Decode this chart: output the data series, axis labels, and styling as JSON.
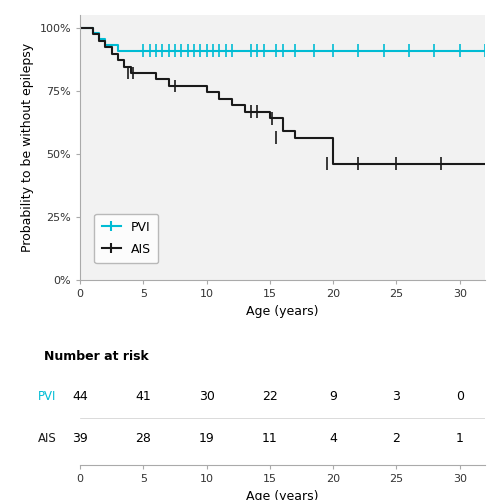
{
  "pvi_steps": {
    "times": [
      0,
      0.5,
      1.0,
      1.5,
      2.0,
      3.0,
      4.0,
      5.0,
      6.0,
      7.0,
      8.0,
      9.0,
      10.0,
      11.0,
      12.0,
      13.0,
      14.0,
      15.0,
      16.0,
      17.0,
      18.0,
      19.0,
      20.0,
      25.0,
      30.0,
      32.0
    ],
    "surv": [
      1.0,
      1.0,
      0.977,
      0.955,
      0.932,
      0.909,
      0.909,
      0.909,
      0.909,
      0.909,
      0.909,
      0.909,
      0.909,
      0.909,
      0.909,
      0.909,
      0.909,
      0.909,
      0.909,
      0.909,
      0.909,
      0.909,
      0.909,
      0.909,
      0.909,
      0.909
    ]
  },
  "pvi_censored": [
    5.0,
    5.5,
    6.0,
    6.5,
    7.0,
    7.5,
    8.0,
    8.5,
    9.0,
    9.5,
    10.0,
    10.5,
    11.0,
    11.5,
    12.0,
    13.5,
    14.0,
    14.5,
    15.5,
    16.0,
    17.0,
    18.5,
    20.0,
    22.0,
    24.0,
    26.0,
    28.0,
    30.0,
    32.0
  ],
  "pvi_censored_y": [
    0.909,
    0.909,
    0.909,
    0.909,
    0.909,
    0.909,
    0.909,
    0.909,
    0.909,
    0.909,
    0.909,
    0.909,
    0.909,
    0.909,
    0.909,
    0.909,
    0.909,
    0.909,
    0.909,
    0.909,
    0.909,
    0.909,
    0.909,
    0.909,
    0.909,
    0.909,
    0.909,
    0.909,
    0.909
  ],
  "ais_steps": {
    "times": [
      0,
      0.5,
      1.0,
      1.5,
      2.0,
      2.5,
      3.0,
      3.5,
      4.0,
      5.0,
      6.0,
      7.0,
      8.0,
      9.0,
      10.0,
      11.0,
      12.0,
      13.0,
      14.0,
      15.0,
      16.0,
      17.0,
      18.0,
      19.0,
      20.0,
      22.0,
      25.0,
      28.0,
      32.0
    ],
    "surv": [
      1.0,
      1.0,
      0.974,
      0.949,
      0.923,
      0.897,
      0.872,
      0.846,
      0.821,
      0.821,
      0.795,
      0.769,
      0.769,
      0.769,
      0.744,
      0.718,
      0.692,
      0.667,
      0.667,
      0.641,
      0.59,
      0.564,
      0.564,
      0.564,
      0.462,
      0.462,
      0.462,
      0.462,
      0.462
    ]
  },
  "ais_censored_times": [
    3.8,
    4.2,
    7.5,
    13.5,
    14.0,
    15.2,
    15.5,
    19.5,
    22.0,
    25.0,
    28.5
  ],
  "ais_censored_y": [
    0.821,
    0.821,
    0.769,
    0.667,
    0.667,
    0.641,
    0.564,
    0.462,
    0.462,
    0.462,
    0.462
  ],
  "pvi_color": "#00bcd4",
  "ais_color": "#1a1a1a",
  "ylabel": "Probability to be without epilepsy",
  "xlabel": "Age (years)",
  "xlim": [
    0,
    32
  ],
  "ylim": [
    0,
    1.05
  ],
  "yticks": [
    0,
    0.25,
    0.5,
    0.75,
    1.0
  ],
  "ytick_labels": [
    "0%",
    "25%",
    "50%",
    "75%",
    "100%"
  ],
  "xticks": [
    0,
    5,
    10,
    15,
    20,
    25,
    30
  ],
  "risk_times": [
    0,
    5,
    10,
    15,
    20,
    25,
    30
  ],
  "pvi_risk": [
    44,
    41,
    30,
    22,
    9,
    3,
    0
  ],
  "ais_risk": [
    39,
    28,
    19,
    11,
    4,
    2,
    1
  ],
  "bg_color": "#f2f2f2",
  "line_width": 1.5,
  "font_size": 9,
  "tick_font_size": 8
}
